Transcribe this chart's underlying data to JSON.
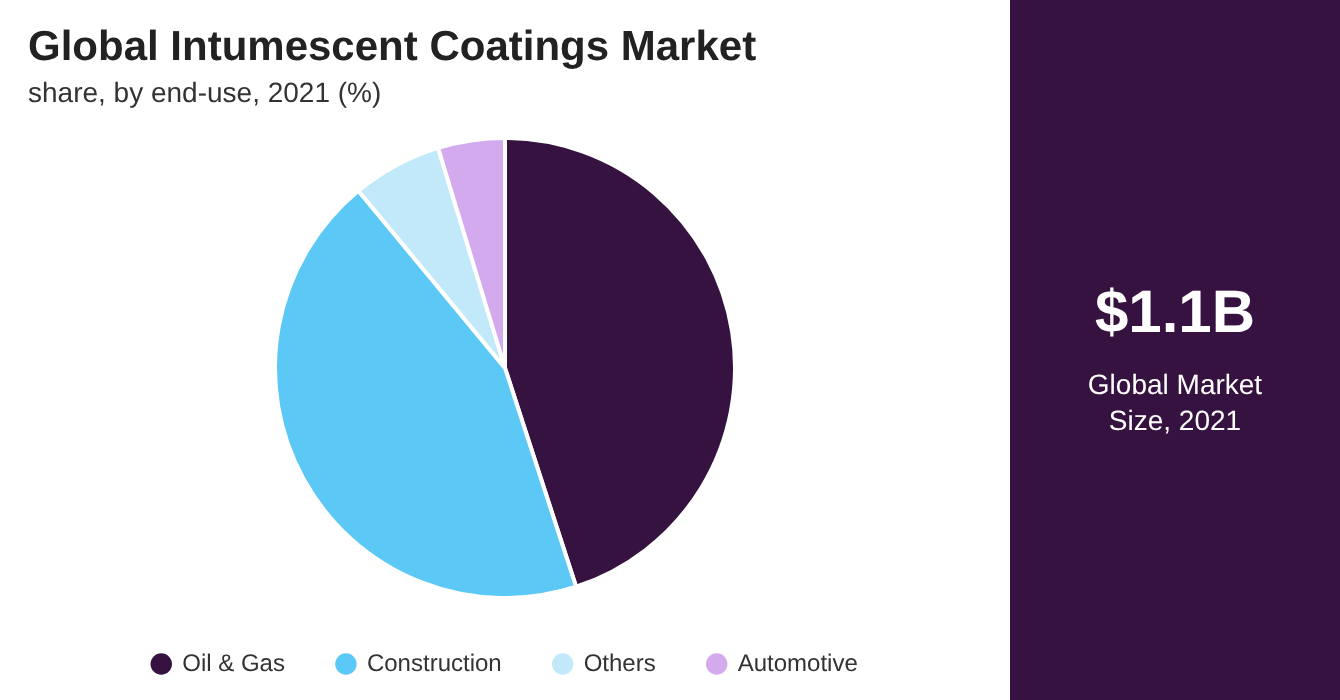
{
  "chart_data": {
    "type": "pie",
    "title": "Global Intumescent Coatings Market",
    "subtitle": "share, by end-use, 2021 (%)",
    "categories": [
      "Oil & Gas",
      "Construction",
      "Others",
      "Automotive"
    ],
    "values": [
      45,
      44,
      6.3,
      4.7
    ],
    "colors": [
      "#35123f",
      "#5bc8f5",
      "#c2e9f9",
      "#d4aaee"
    ],
    "legend": "bottom",
    "annotations": [
      "$1.1B",
      "Global Market Size, 2021"
    ]
  }
}
